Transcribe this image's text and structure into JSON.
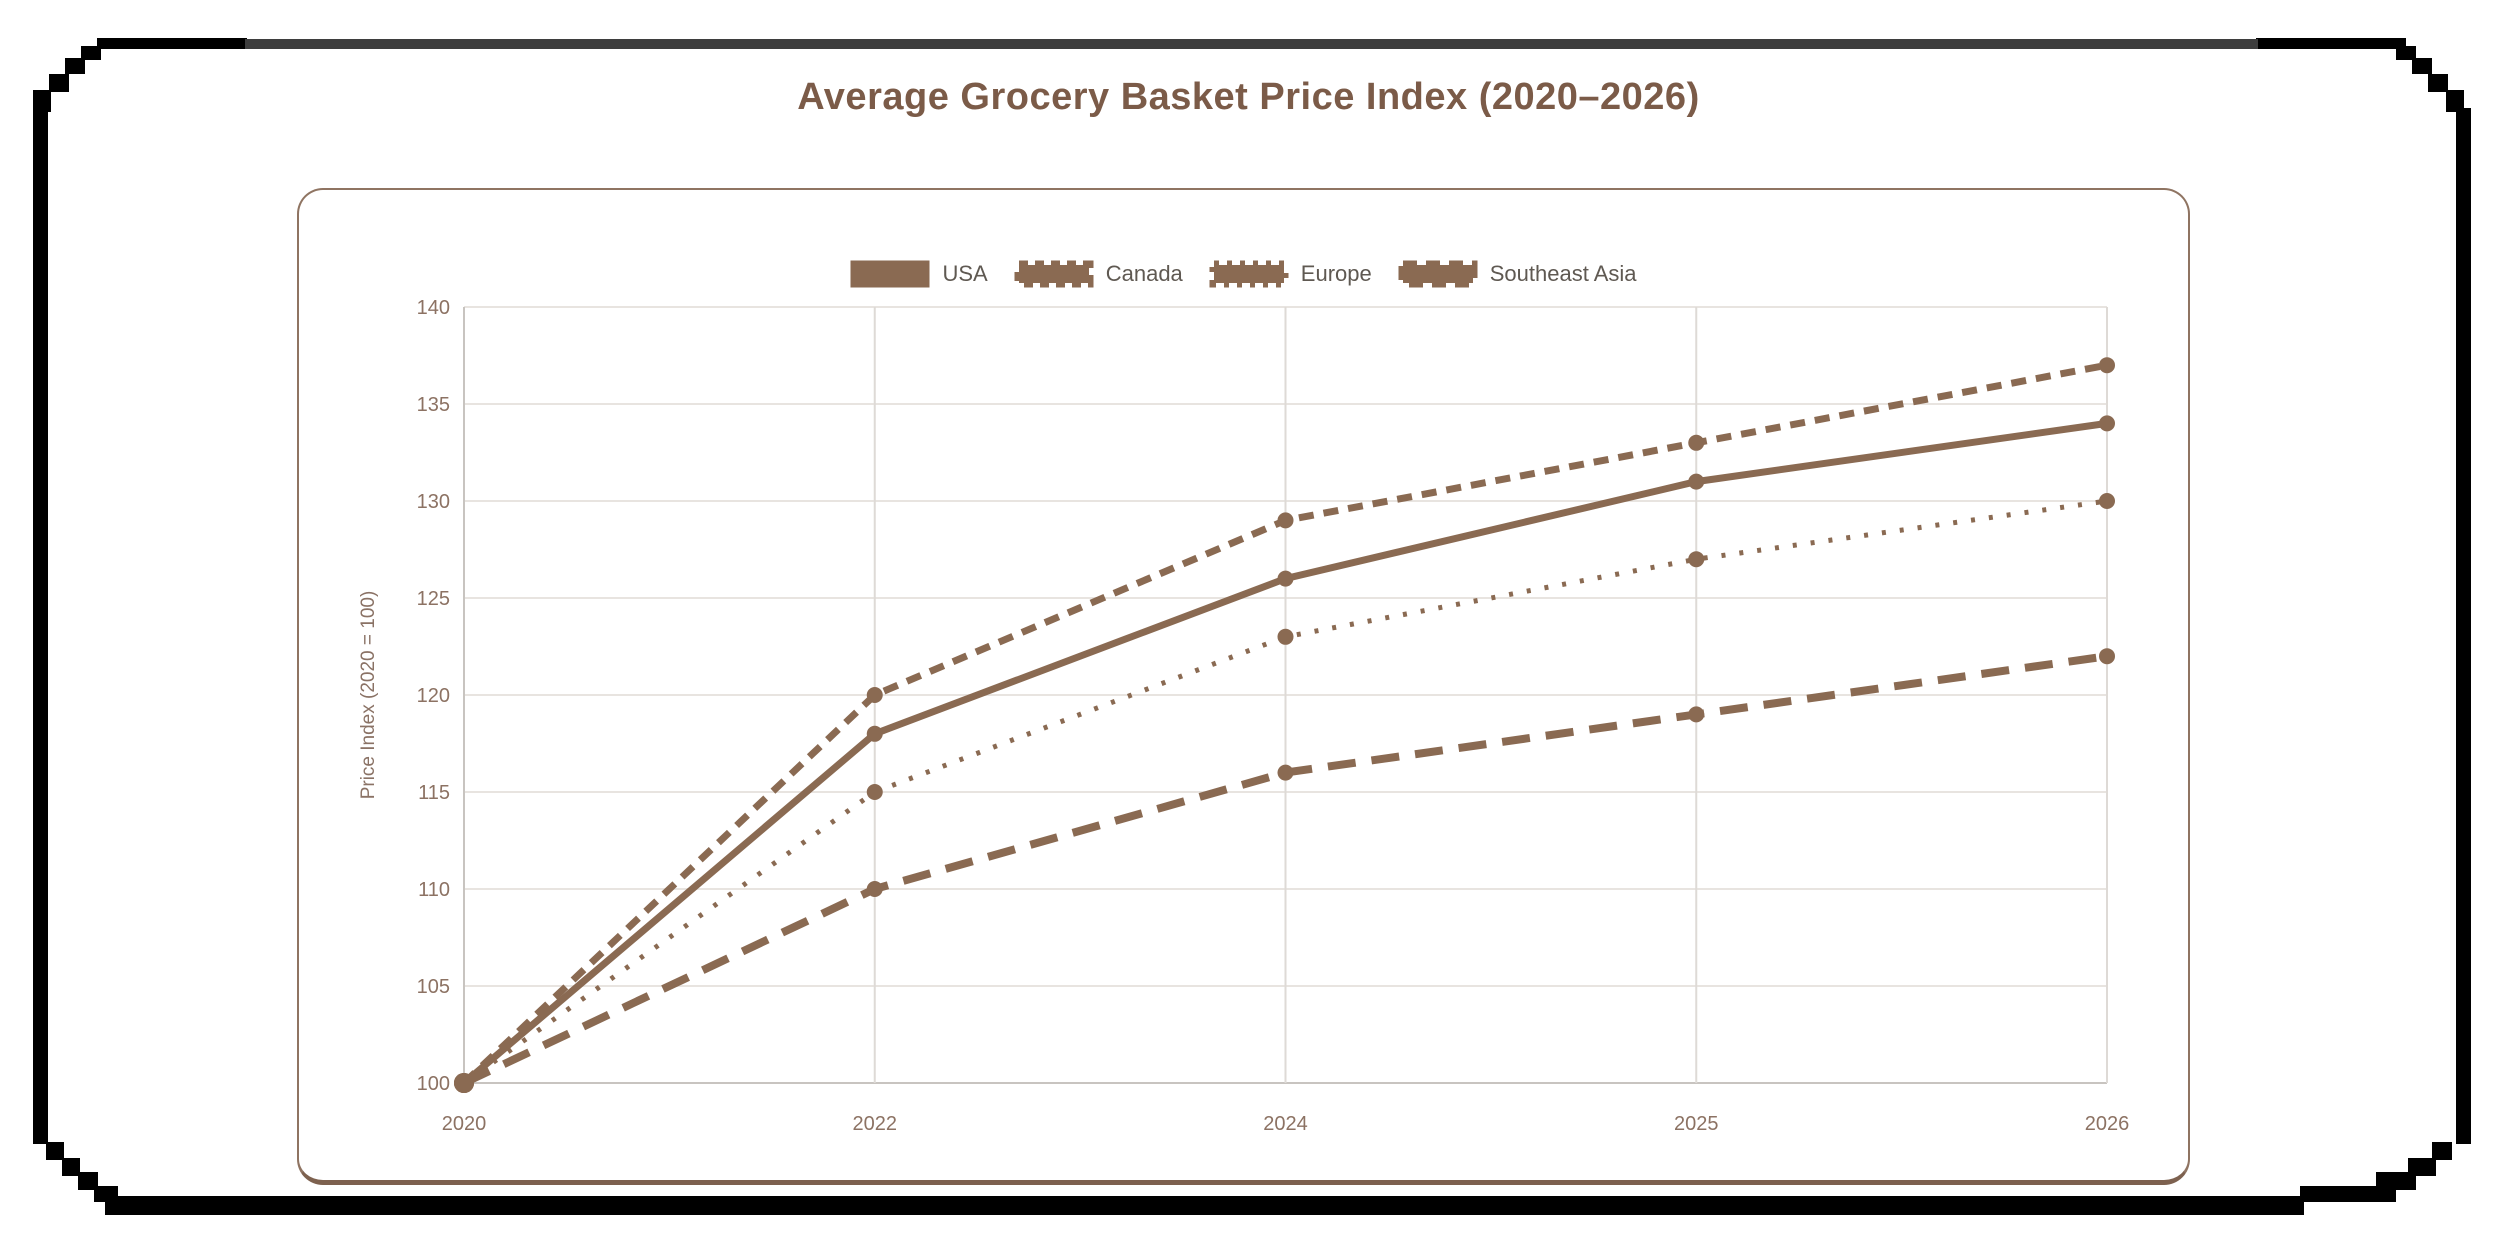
{
  "title": "Average Grocery Basket Price Index (2020–2026)",
  "colors": {
    "series_line": "#8a6a52",
    "title_text": "#7b5b48",
    "tick_text": "#8c7263",
    "axis_title_text": "#8a7265",
    "legend_text": "#5f5952",
    "grid_horizontal": "#e8e4e0",
    "grid_vertical": "#dedad6",
    "axis_border": "#c8c4c0",
    "card_border": "#8f7462",
    "frame_black": "#000000",
    "frame_gray": "#3e3e3e"
  },
  "legend": {
    "items": [
      {
        "label": "USA",
        "dash": "solid"
      },
      {
        "label": "Canada",
        "dash": "dashed"
      },
      {
        "label": "Europe",
        "dash": "dotted"
      },
      {
        "label": "Southeast Asia",
        "dash": "long-dash"
      }
    ]
  },
  "chart_data": {
    "type": "line",
    "title": "Average Grocery Basket Price Index (2020–2026)",
    "categories": [
      "2020",
      "2022",
      "2024",
      "2025",
      "2026"
    ],
    "series": [
      {
        "name": "USA",
        "dash": "solid",
        "values": [
          100,
          118,
          126,
          131,
          134
        ]
      },
      {
        "name": "Canada",
        "dash": "dashed",
        "values": [
          100,
          120,
          129,
          133,
          137
        ]
      },
      {
        "name": "Europe",
        "dash": "dotted",
        "values": [
          100,
          115,
          123,
          127,
          130
        ]
      },
      {
        "name": "Southeast Asia",
        "dash": "long-dash",
        "values": [
          100,
          110,
          116,
          119,
          122
        ]
      }
    ],
    "xlabel": "",
    "ylabel": "Price Index (2020 = 100)",
    "ylim": [
      100,
      140
    ],
    "yticks": [
      100,
      105,
      110,
      115,
      120,
      125,
      130,
      135,
      140
    ],
    "grid": true,
    "legend_position": "top",
    "point_style": "circle"
  }
}
